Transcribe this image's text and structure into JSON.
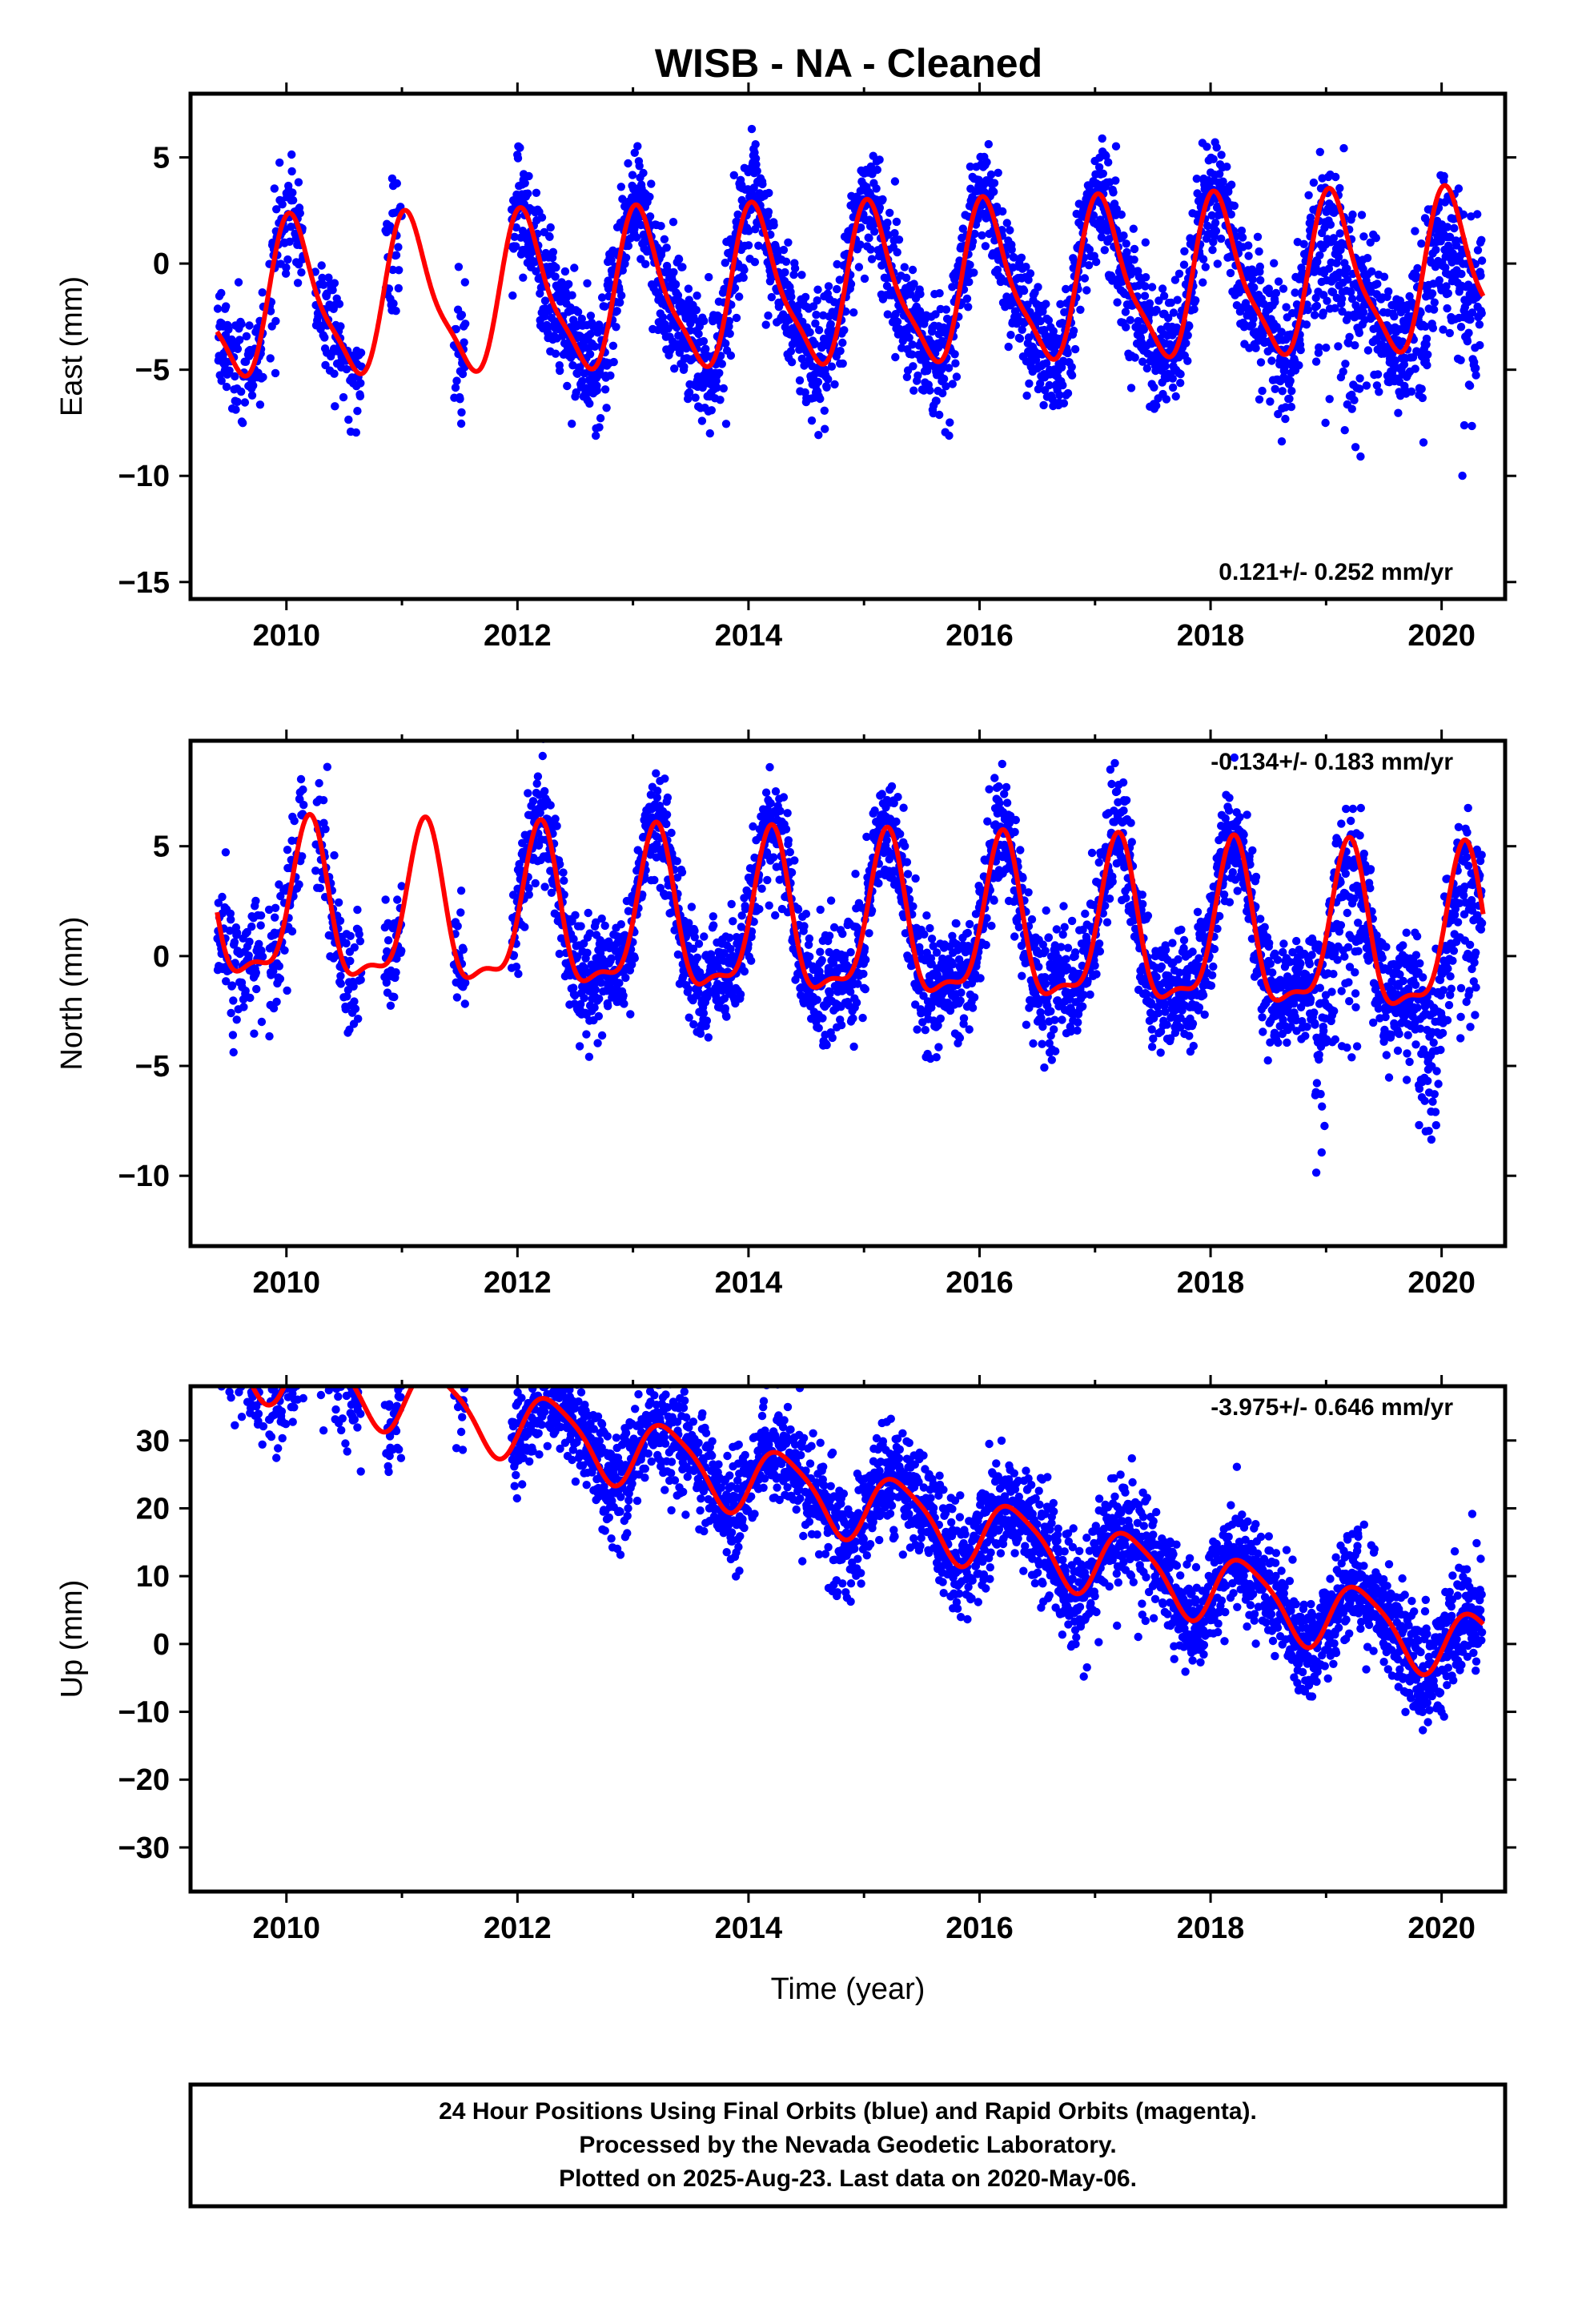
{
  "title": "WISB  - NA - Cleaned",
  "colors": {
    "points": "#0000ff",
    "model": "#ff0000",
    "frame": "#000000"
  },
  "footer": {
    "line1": "24 Hour Positions Using Final Orbits (blue) and Rapid Orbits (magenta).",
    "line2": "Processed by the Nevada Geodetic Laboratory.",
    "line3": "Plotted on 2025-Aug-23. Last data on 2020-May-06."
  },
  "chart_data": [
    {
      "type": "scatter",
      "ylabel": "East (mm)",
      "xlabel": "",
      "xlim": [
        2009.17,
        2020.55
      ],
      "ylim": [
        -15.8,
        8.0
      ],
      "xticks": [
        "2010",
        "2012",
        "2014",
        "2016",
        "2018",
        "2020"
      ],
      "yticks": [
        "5",
        "0",
        "−5",
        "−10",
        "−15"
      ],
      "rate_label": "0.121+/- 0.252 mm/yr",
      "rate_position": "bottom-right",
      "grid": false,
      "model": {
        "offset": -1.2,
        "trend": 0.121,
        "ann_amp": [
          3.5,
          3.6
        ],
        "ann_phase_deg": 66,
        "semi_amp": 0.9,
        "semi_phase_deg": 100
      },
      "data_segments": [
        [
          2009.4,
          2009.8
        ],
        [
          2009.85,
          2010.15
        ],
        [
          2010.25,
          2010.65
        ],
        [
          2010.85,
          2011.0
        ],
        [
          2011.45,
          2011.55
        ],
        [
          2011.95,
          2020.35
        ]
      ],
      "noise_mm": 1.4,
      "series": [
        {
          "name": "",
          "role": "daily positions"
        },
        {
          "name": "",
          "role": "model fit"
        }
      ]
    },
    {
      "type": "scatter",
      "ylabel": "North (mm)",
      "xlabel": "",
      "xlim": [
        2009.17,
        2020.55
      ],
      "ylim": [
        -13.2,
        9.8
      ],
      "xticks": [
        "2010",
        "2012",
        "2014",
        "2016",
        "2018",
        "2020"
      ],
      "yticks": [
        "5",
        "0",
        "−5",
        "−10"
      ],
      "rate_label": "-0.134+/- 0.183 mm/yr",
      "rate_position": "top-right",
      "grid": false,
      "model": {
        "offset": 1.2,
        "trend": -0.134,
        "ann_amp": [
          3.4,
          3.6
        ],
        "ann_phase_deg": 20,
        "semi_amp": 1.2,
        "semi_phase_deg": 300
      },
      "data_segments": [
        [
          2009.4,
          2009.8
        ],
        [
          2009.85,
          2010.15
        ],
        [
          2010.25,
          2010.65
        ],
        [
          2010.85,
          2011.0
        ],
        [
          2011.45,
          2011.55
        ],
        [
          2011.95,
          2020.35
        ]
      ],
      "noise_mm": 1.3,
      "series": [
        {
          "name": "",
          "role": "daily positions"
        },
        {
          "name": "",
          "role": "model fit"
        }
      ]
    },
    {
      "type": "scatter",
      "ylabel": "Up (mm)",
      "xlabel": "Time (year)",
      "xlim": [
        2009.17,
        2020.55
      ],
      "ylim": [
        -36.5,
        38.0
      ],
      "xticks": [
        "2010",
        "2012",
        "2014",
        "2016",
        "2018",
        "2020"
      ],
      "yticks": [
        "30",
        "20",
        "10",
        "0",
        "−10",
        "−20",
        "−30"
      ],
      "rate_label": "-3.975+/- 0.646 mm/yr",
      "rate_position": "top-right",
      "grid": false,
      "model": {
        "offset": 20.5,
        "trend": -3.975,
        "ann_amp": [
          5.0,
          5.0
        ],
        "ann_phase_deg": 340,
        "semi_amp": 1.0,
        "semi_phase_deg": 0
      },
      "data_segments": [
        [
          2009.4,
          2009.8
        ],
        [
          2009.85,
          2010.15
        ],
        [
          2010.25,
          2010.65
        ],
        [
          2010.85,
          2011.0
        ],
        [
          2011.45,
          2011.55
        ],
        [
          2011.95,
          2020.35
        ]
      ],
      "noise_mm": 4.0,
      "series": [
        {
          "name": "",
          "role": "daily positions"
        },
        {
          "name": "",
          "role": "model fit"
        }
      ]
    }
  ]
}
